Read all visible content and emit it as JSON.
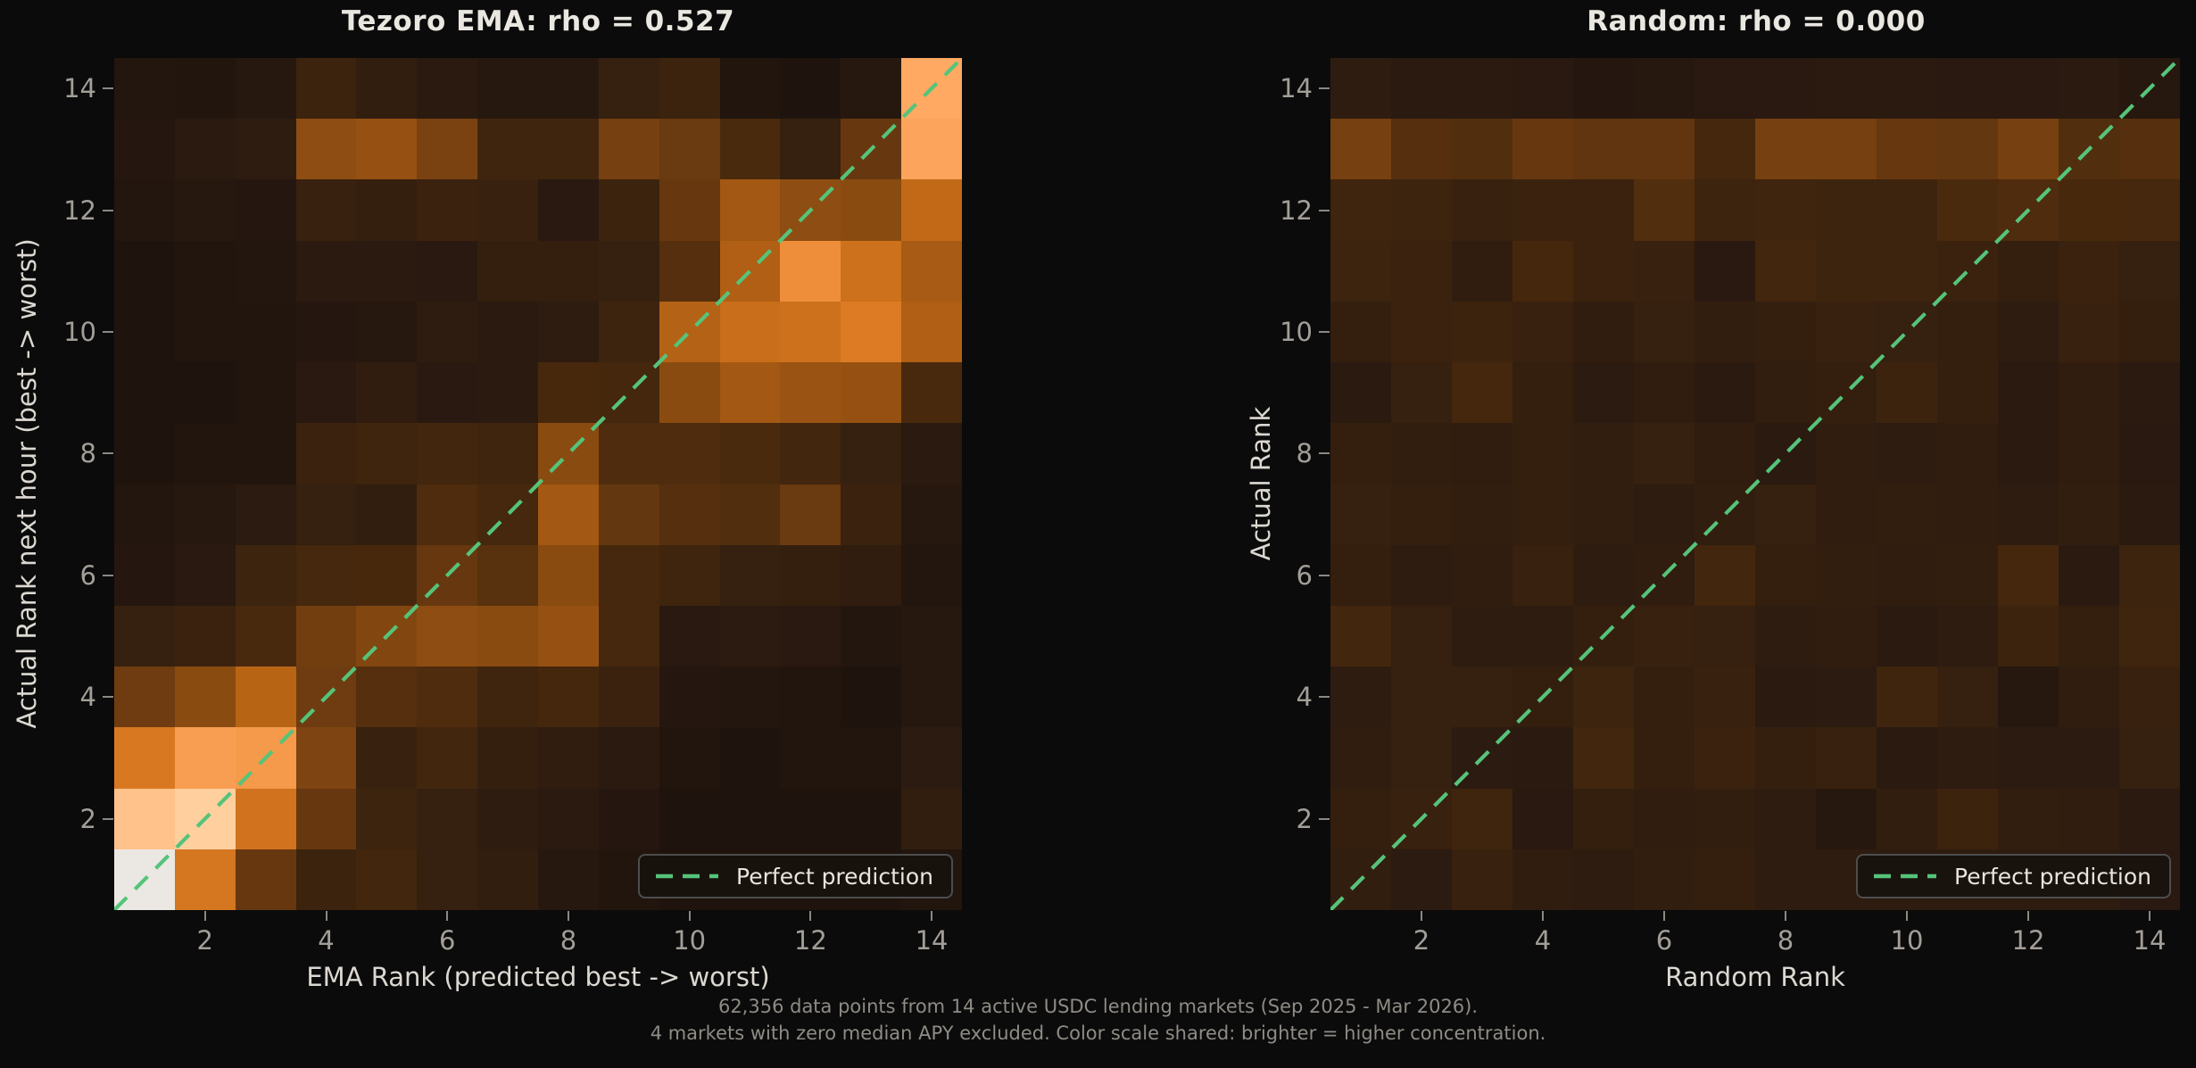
{
  "figure": {
    "background": "#0b0b0b",
    "caption_line1": "62,356 data points from 14 active USDC lending markets (Sep 2025 - Mar 2026).",
    "caption_line2": "4 markets with zero median APY excluded. Color scale shared: brighter = higher concentration."
  },
  "colormap": {
    "description": "shared dark-to-orange-to-white concentration scale",
    "stops": [
      [
        0.0,
        [
          13,
          8,
          5
        ]
      ],
      [
        0.13,
        [
          30,
          19,
          13
        ]
      ],
      [
        0.22,
        [
          42,
          26,
          16
        ]
      ],
      [
        0.3,
        [
          58,
          34,
          14
        ]
      ],
      [
        0.4,
        [
          74,
          42,
          13
        ]
      ],
      [
        0.5,
        [
          110,
          60,
          16
        ]
      ],
      [
        0.6,
        [
          150,
          81,
          18
        ]
      ],
      [
        0.7,
        [
          193,
          105,
          22
        ]
      ],
      [
        0.8,
        [
          232,
          131,
          42
        ]
      ],
      [
        0.87,
        [
          255,
          169,
          99
        ]
      ],
      [
        0.93,
        [
          255,
          207,
          158
        ]
      ],
      [
        1.0,
        [
          235,
          232,
          227
        ]
      ]
    ]
  },
  "chart_data": [
    {
      "type": "heatmap",
      "title": "Tezoro EMA: rho = 0.527",
      "xlabel": "EMA Rank (predicted best -> worst)",
      "ylabel": "Actual Rank next hour (best -> worst)",
      "x_ticks": [
        2,
        4,
        6,
        8,
        10,
        12,
        14
      ],
      "y_ticks": [
        2,
        4,
        6,
        8,
        10,
        12,
        14
      ],
      "x_range": [
        1,
        14
      ],
      "y_range": [
        1,
        14
      ],
      "grid": false,
      "legend": {
        "label": "Perfect prediction",
        "line_color": "#55c47a",
        "line_style": "dashed",
        "position": "lower right"
      },
      "diagonal_line": {
        "from": [
          1,
          1
        ],
        "to": [
          14,
          14
        ],
        "color": "#55c47a",
        "style": "dashed"
      },
      "rows_order": "rank 14 (top) to rank 1 (bottom), columns rank 1..14 left to right, values = relative concentration 0..1",
      "matrix": [
        [
          0.17,
          0.16,
          0.2,
          0.31,
          0.26,
          0.22,
          0.2,
          0.2,
          0.28,
          0.31,
          0.15,
          0.14,
          0.2,
          0.87
        ],
        [
          0.18,
          0.22,
          0.24,
          0.58,
          0.6,
          0.53,
          0.34,
          0.34,
          0.52,
          0.49,
          0.4,
          0.28,
          0.48,
          0.86
        ],
        [
          0.17,
          0.2,
          0.18,
          0.29,
          0.27,
          0.3,
          0.29,
          0.21,
          0.31,
          0.48,
          0.63,
          0.58,
          0.57,
          0.7
        ],
        [
          0.14,
          0.16,
          0.17,
          0.22,
          0.22,
          0.21,
          0.27,
          0.27,
          0.28,
          0.43,
          0.66,
          0.82,
          0.73,
          0.64
        ],
        [
          0.13,
          0.15,
          0.16,
          0.18,
          0.19,
          0.24,
          0.22,
          0.24,
          0.32,
          0.67,
          0.72,
          0.73,
          0.77,
          0.66
        ],
        [
          0.13,
          0.14,
          0.16,
          0.21,
          0.25,
          0.21,
          0.22,
          0.38,
          0.36,
          0.57,
          0.63,
          0.61,
          0.6,
          0.39
        ],
        [
          0.13,
          0.16,
          0.16,
          0.3,
          0.33,
          0.35,
          0.33,
          0.57,
          0.41,
          0.41,
          0.4,
          0.35,
          0.28,
          0.22
        ],
        [
          0.17,
          0.19,
          0.23,
          0.28,
          0.26,
          0.41,
          0.37,
          0.63,
          0.47,
          0.43,
          0.42,
          0.49,
          0.3,
          0.2
        ],
        [
          0.18,
          0.21,
          0.32,
          0.37,
          0.38,
          0.48,
          0.44,
          0.57,
          0.37,
          0.33,
          0.28,
          0.27,
          0.25,
          0.17
        ],
        [
          0.28,
          0.3,
          0.39,
          0.51,
          0.55,
          0.58,
          0.57,
          0.6,
          0.37,
          0.21,
          0.23,
          0.21,
          0.17,
          0.19
        ],
        [
          0.5,
          0.57,
          0.68,
          0.5,
          0.43,
          0.41,
          0.33,
          0.36,
          0.3,
          0.18,
          0.17,
          0.16,
          0.14,
          0.2
        ],
        [
          0.76,
          0.85,
          0.84,
          0.54,
          0.29,
          0.35,
          0.27,
          0.25,
          0.22,
          0.15,
          0.14,
          0.15,
          0.15,
          0.23
        ],
        [
          0.91,
          0.93,
          0.74,
          0.48,
          0.32,
          0.28,
          0.24,
          0.22,
          0.18,
          0.14,
          0.14,
          0.13,
          0.14,
          0.26
        ],
        [
          1.0,
          0.75,
          0.48,
          0.31,
          0.35,
          0.28,
          0.26,
          0.2,
          0.16,
          0.14,
          0.13,
          0.13,
          0.14,
          0.15
        ]
      ]
    },
    {
      "type": "heatmap",
      "title": "Random: rho = 0.000",
      "xlabel": "Random Rank",
      "ylabel": "Actual Rank",
      "x_ticks": [
        2,
        4,
        6,
        8,
        10,
        12,
        14
      ],
      "y_ticks": [
        2,
        4,
        6,
        8,
        10,
        12,
        14
      ],
      "x_range": [
        1,
        14
      ],
      "y_range": [
        1,
        14
      ],
      "grid": false,
      "legend": {
        "label": "Perfect prediction",
        "line_color": "#55c47a",
        "line_style": "dashed",
        "position": "lower right"
      },
      "diagonal_line": {
        "from": [
          1,
          1
        ],
        "to": [
          14,
          14
        ],
        "color": "#55c47a",
        "style": "dashed"
      },
      "rows_order": "rank 14 (top) to rank 1 (bottom), columns rank 1..14 left to right, values = relative concentration 0..1",
      "matrix": [
        [
          0.24,
          0.22,
          0.22,
          0.21,
          0.18,
          0.2,
          0.21,
          0.21,
          0.22,
          0.22,
          0.21,
          0.21,
          0.22,
          0.19
        ],
        [
          0.52,
          0.43,
          0.42,
          0.48,
          0.46,
          0.46,
          0.36,
          0.52,
          0.52,
          0.48,
          0.47,
          0.52,
          0.42,
          0.43
        ],
        [
          0.33,
          0.32,
          0.29,
          0.3,
          0.3,
          0.42,
          0.32,
          0.33,
          0.32,
          0.32,
          0.4,
          0.41,
          0.38,
          0.37
        ],
        [
          0.32,
          0.3,
          0.25,
          0.36,
          0.3,
          0.29,
          0.21,
          0.35,
          0.32,
          0.32,
          0.3,
          0.27,
          0.3,
          0.28
        ],
        [
          0.27,
          0.3,
          0.31,
          0.29,
          0.25,
          0.28,
          0.26,
          0.27,
          0.29,
          0.28,
          0.27,
          0.24,
          0.29,
          0.27
        ],
        [
          0.22,
          0.28,
          0.36,
          0.27,
          0.23,
          0.25,
          0.22,
          0.26,
          0.27,
          0.31,
          0.27,
          0.22,
          0.25,
          0.22
        ],
        [
          0.27,
          0.26,
          0.25,
          0.27,
          0.26,
          0.28,
          0.25,
          0.22,
          0.25,
          0.24,
          0.25,
          0.22,
          0.25,
          0.21
        ],
        [
          0.28,
          0.27,
          0.26,
          0.27,
          0.26,
          0.24,
          0.26,
          0.28,
          0.25,
          0.26,
          0.25,
          0.24,
          0.26,
          0.22
        ],
        [
          0.27,
          0.24,
          0.25,
          0.29,
          0.24,
          0.25,
          0.35,
          0.27,
          0.26,
          0.25,
          0.26,
          0.36,
          0.22,
          0.32
        ],
        [
          0.35,
          0.28,
          0.24,
          0.24,
          0.27,
          0.29,
          0.28,
          0.24,
          0.25,
          0.22,
          0.24,
          0.31,
          0.27,
          0.34
        ],
        [
          0.24,
          0.28,
          0.28,
          0.27,
          0.32,
          0.27,
          0.29,
          0.22,
          0.23,
          0.34,
          0.28,
          0.19,
          0.25,
          0.29
        ],
        [
          0.25,
          0.28,
          0.23,
          0.22,
          0.35,
          0.27,
          0.3,
          0.27,
          0.29,
          0.22,
          0.24,
          0.23,
          0.23,
          0.28
        ],
        [
          0.27,
          0.29,
          0.33,
          0.21,
          0.27,
          0.25,
          0.26,
          0.24,
          0.2,
          0.26,
          0.31,
          0.26,
          0.25,
          0.22
        ],
        [
          0.26,
          0.23,
          0.29,
          0.25,
          0.24,
          0.26,
          0.27,
          0.24,
          0.24,
          0.24,
          0.24,
          0.24,
          0.24,
          0.21
        ]
      ]
    }
  ]
}
